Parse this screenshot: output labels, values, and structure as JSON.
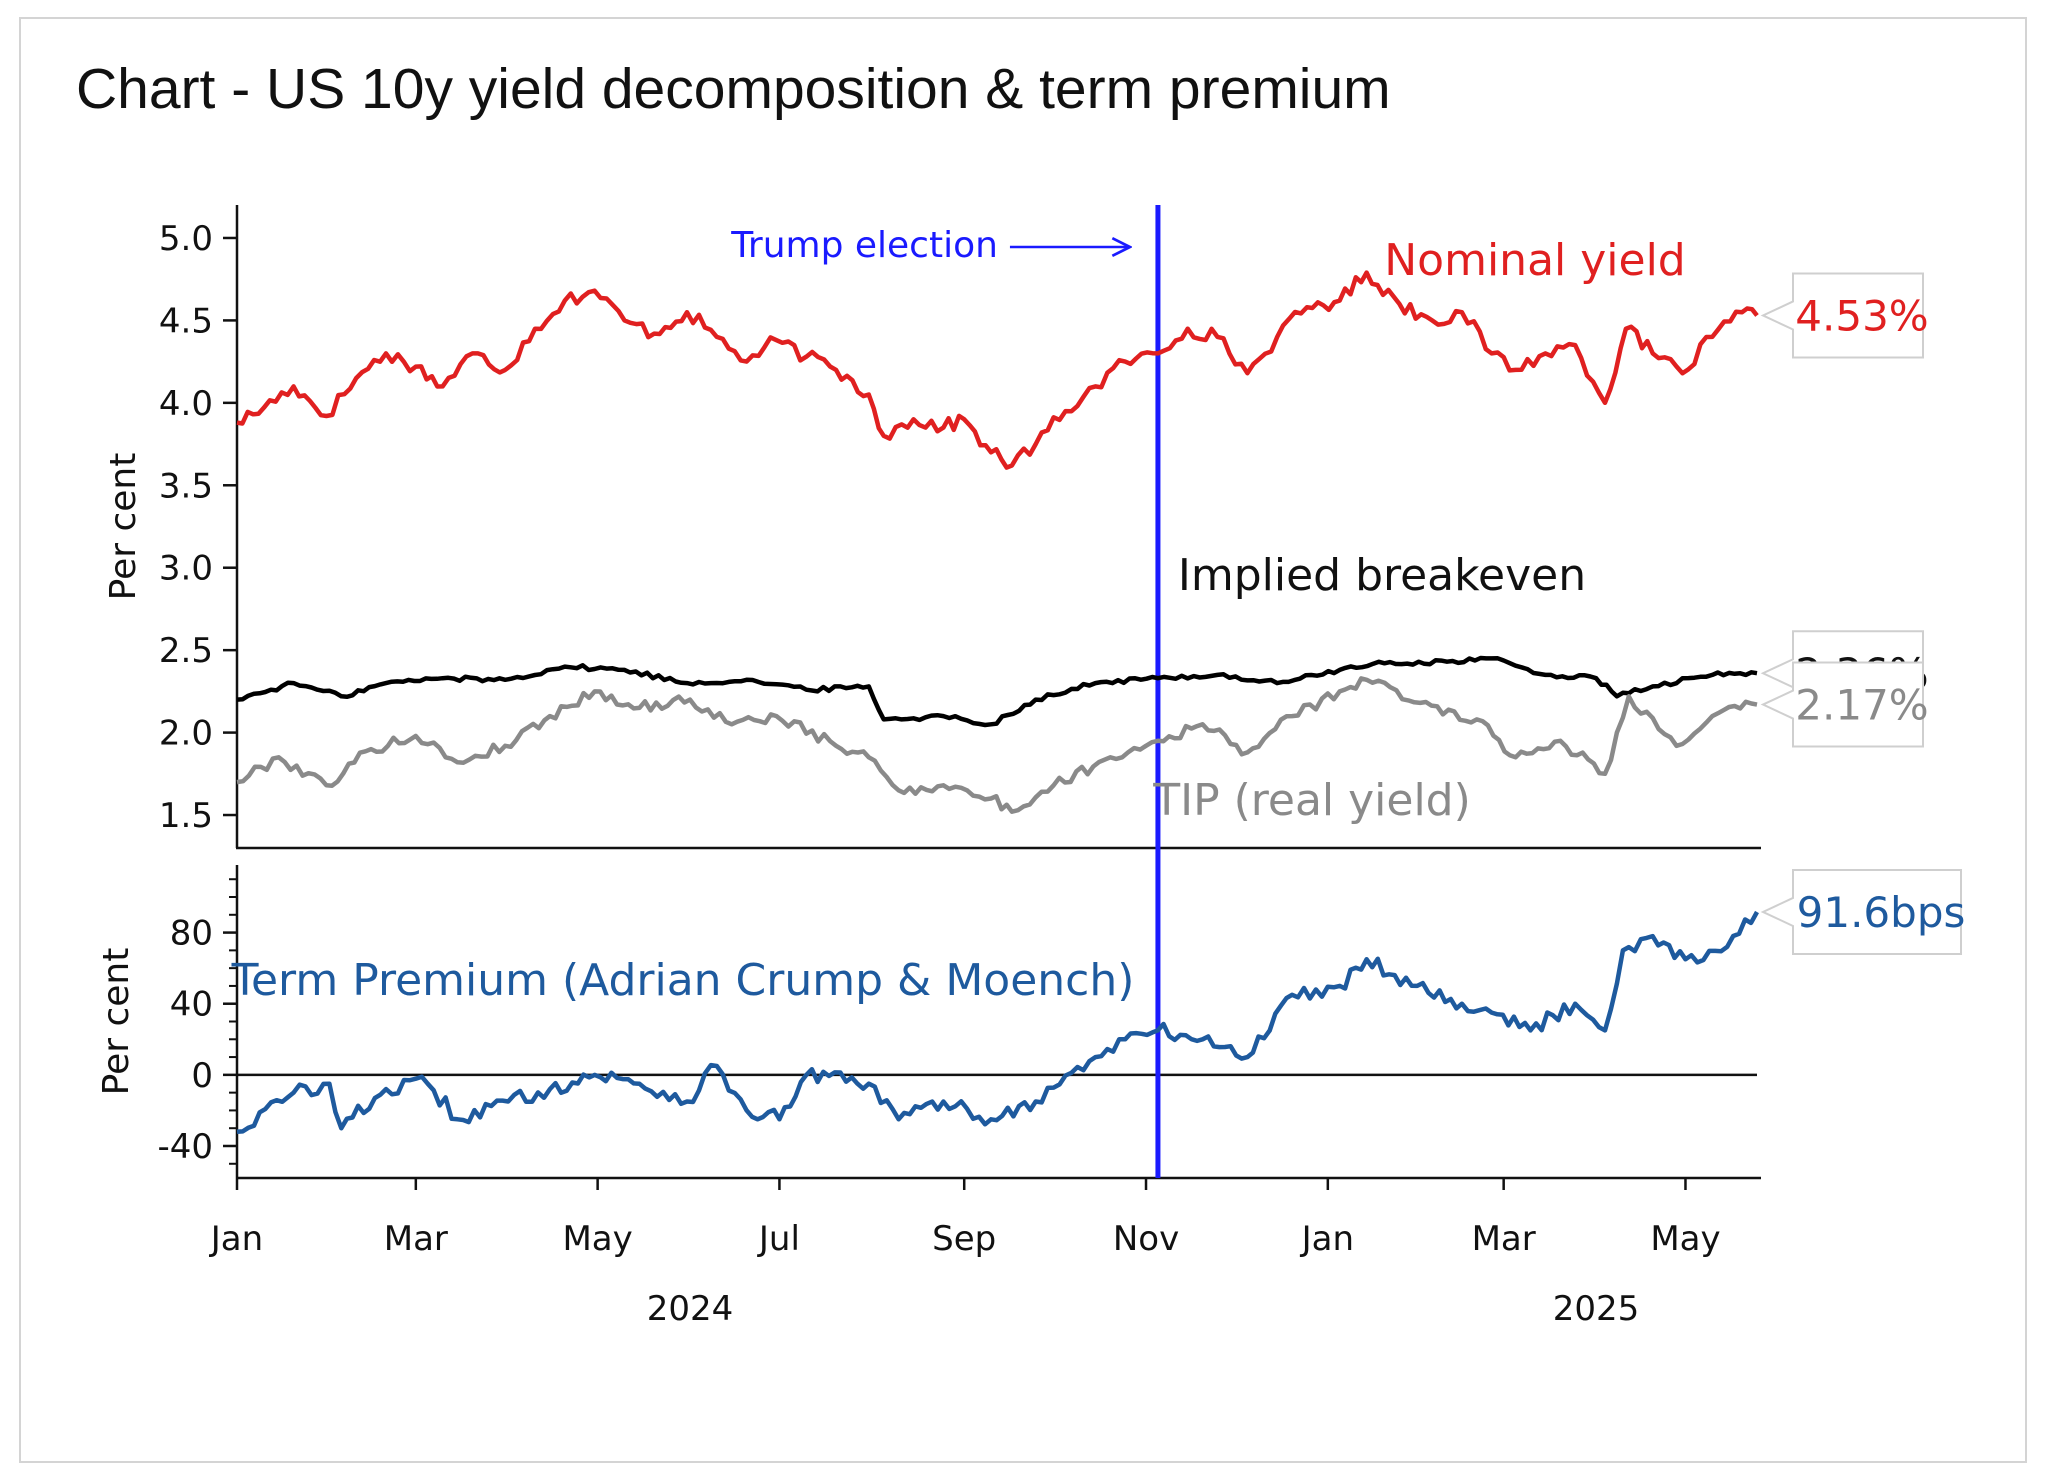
{
  "title": "Chart - US 10y yield decomposition & term premium",
  "chart_data": {
    "type": "line",
    "x_axis": {
      "months": [
        "Jan",
        "Mar",
        "May",
        "Jul",
        "Sep",
        "Nov",
        "Jan",
        "Mar",
        "May"
      ],
      "month_dates": [
        "2024-01-01",
        "2024-03-01",
        "2024-05-01",
        "2024-07-01",
        "2024-09-01",
        "2024-11-01",
        "2025-01-01",
        "2025-03-01",
        "2025-05-01"
      ],
      "years": [
        "2024",
        "2025"
      ],
      "year_dates": [
        "2024-06-01",
        "2025-04-01"
      ],
      "range": [
        "2024-01-01",
        "2025-05-25"
      ]
    },
    "annotation": {
      "label": "Trump election",
      "date": "2024-11-05",
      "color": "#1a1aff"
    },
    "panels": [
      {
        "id": "yields",
        "ylabel": "Per cent",
        "ylim": [
          1.3,
          5.2
        ],
        "yticks": [
          "5.0",
          "4.5",
          "4.0",
          "3.5",
          "3.0",
          "2.5",
          "2.0",
          "1.5"
        ],
        "series": [
          {
            "name": "Nominal yield",
            "color": "#e02020",
            "last_label": "4.53%",
            "points": [
              [
                "2024-01-01",
                3.88
              ],
              [
                "2024-01-10",
                3.97
              ],
              [
                "2024-01-20",
                4.1
              ],
              [
                "2024-01-31",
                3.92
              ],
              [
                "2024-02-10",
                4.15
              ],
              [
                "2024-02-20",
                4.3
              ],
              [
                "2024-03-01",
                4.22
              ],
              [
                "2024-03-10",
                4.1
              ],
              [
                "2024-03-20",
                4.3
              ],
              [
                "2024-03-31",
                4.2
              ],
              [
                "2024-04-10",
                4.45
              ],
              [
                "2024-04-20",
                4.62
              ],
              [
                "2024-04-30",
                4.68
              ],
              [
                "2024-05-10",
                4.5
              ],
              [
                "2024-05-20",
                4.42
              ],
              [
                "2024-05-31",
                4.55
              ],
              [
                "2024-06-10",
                4.4
              ],
              [
                "2024-06-20",
                4.25
              ],
              [
                "2024-06-30",
                4.38
              ],
              [
                "2024-07-10",
                4.28
              ],
              [
                "2024-07-20",
                4.2
              ],
              [
                "2024-07-31",
                4.05
              ],
              [
                "2024-08-05",
                3.8
              ],
              [
                "2024-08-15",
                3.9
              ],
              [
                "2024-08-25",
                3.85
              ],
              [
                "2024-09-01",
                3.9
              ],
              [
                "2024-09-10",
                3.7
              ],
              [
                "2024-09-17",
                3.62
              ],
              [
                "2024-09-25",
                3.75
              ],
              [
                "2024-10-05",
                3.95
              ],
              [
                "2024-10-15",
                4.1
              ],
              [
                "2024-10-25",
                4.25
              ],
              [
                "2024-11-05",
                4.3
              ],
              [
                "2024-11-15",
                4.45
              ],
              [
                "2024-11-25",
                4.4
              ],
              [
                "2024-12-05",
                4.18
              ],
              [
                "2024-12-15",
                4.4
              ],
              [
                "2024-12-25",
                4.58
              ],
              [
                "2025-01-05",
                4.62
              ],
              [
                "2025-01-14",
                4.79
              ],
              [
                "2025-01-25",
                4.6
              ],
              [
                "2025-02-05",
                4.5
              ],
              [
                "2025-02-15",
                4.55
              ],
              [
                "2025-02-25",
                4.3
              ],
              [
                "2025-03-05",
                4.2
              ],
              [
                "2025-03-15",
                4.3
              ],
              [
                "2025-03-25",
                4.35
              ],
              [
                "2025-04-04",
                4.0
              ],
              [
                "2025-04-11",
                4.45
              ],
              [
                "2025-04-20",
                4.3
              ],
              [
                "2025-04-30",
                4.18
              ],
              [
                "2025-05-10",
                4.4
              ],
              [
                "2025-05-20",
                4.55
              ],
              [
                "2025-05-25",
                4.53
              ]
            ]
          },
          {
            "name": "Implied breakeven",
            "color": "#000000",
            "last_label": "2.36%",
            "points": [
              [
                "2024-01-01",
                2.2
              ],
              [
                "2024-01-20",
                2.3
              ],
              [
                "2024-02-05",
                2.22
              ],
              [
                "2024-02-20",
                2.3
              ],
              [
                "2024-03-10",
                2.33
              ],
              [
                "2024-03-31",
                2.32
              ],
              [
                "2024-04-20",
                2.4
              ],
              [
                "2024-05-10",
                2.38
              ],
              [
                "2024-05-31",
                2.3
              ],
              [
                "2024-06-20",
                2.32
              ],
              [
                "2024-07-10",
                2.26
              ],
              [
                "2024-07-31",
                2.28
              ],
              [
                "2024-08-05",
                2.08
              ],
              [
                "2024-08-25",
                2.1
              ],
              [
                "2024-09-10",
                2.05
              ],
              [
                "2024-09-25",
                2.2
              ],
              [
                "2024-10-15",
                2.3
              ],
              [
                "2024-11-05",
                2.33
              ],
              [
                "2024-11-25",
                2.35
              ],
              [
                "2024-12-15",
                2.3
              ],
              [
                "2025-01-05",
                2.38
              ],
              [
                "2025-01-20",
                2.42
              ],
              [
                "2025-02-10",
                2.43
              ],
              [
                "2025-02-25",
                2.45
              ],
              [
                "2025-03-15",
                2.35
              ],
              [
                "2025-04-01",
                2.33
              ],
              [
                "2025-04-08",
                2.22
              ],
              [
                "2025-04-20",
                2.28
              ],
              [
                "2025-05-10",
                2.35
              ],
              [
                "2025-05-25",
                2.36
              ]
            ]
          },
          {
            "name": "TIP (real yield)",
            "color": "#8a8a8a",
            "last_label": "2.17%",
            "points": [
              [
                "2024-01-01",
                1.7
              ],
              [
                "2024-01-15",
                1.85
              ],
              [
                "2024-01-31",
                1.68
              ],
              [
                "2024-02-15",
                1.9
              ],
              [
                "2024-03-01",
                1.98
              ],
              [
                "2024-03-15",
                1.82
              ],
              [
                "2024-03-31",
                1.92
              ],
              [
                "2024-04-15",
                2.1
              ],
              [
                "2024-04-30",
                2.25
              ],
              [
                "2024-05-15",
                2.15
              ],
              [
                "2024-06-01",
                2.2
              ],
              [
                "2024-06-15",
                2.05
              ],
              [
                "2024-06-30",
                2.1
              ],
              [
                "2024-07-20",
                1.92
              ],
              [
                "2024-07-31",
                1.85
              ],
              [
                "2024-08-10",
                1.65
              ],
              [
                "2024-08-25",
                1.68
              ],
              [
                "2024-09-10",
                1.6
              ],
              [
                "2024-09-17",
                1.52
              ],
              [
                "2024-10-01",
                1.68
              ],
              [
                "2024-10-20",
                1.85
              ],
              [
                "2024-11-05",
                1.95
              ],
              [
                "2024-11-20",
                2.05
              ],
              [
                "2024-12-05",
                1.88
              ],
              [
                "2024-12-20",
                2.1
              ],
              [
                "2025-01-05",
                2.25
              ],
              [
                "2025-01-14",
                2.32
              ],
              [
                "2025-02-01",
                2.18
              ],
              [
                "2025-02-20",
                2.08
              ],
              [
                "2025-03-05",
                1.85
              ],
              [
                "2025-03-20",
                1.95
              ],
              [
                "2025-04-04",
                1.75
              ],
              [
                "2025-04-12",
                2.22
              ],
              [
                "2025-04-28",
                1.92
              ],
              [
                "2025-05-10",
                2.1
              ],
              [
                "2025-05-25",
                2.17
              ]
            ]
          }
        ]
      },
      {
        "id": "term-premium",
        "ylabel": "Per cent",
        "ylim": [
          -58,
          118
        ],
        "yticks": [
          "80",
          "40",
          "0",
          "-40"
        ],
        "zero_line": true,
        "series": [
          {
            "name": "Term Premium (Adrian Crump & Moench)",
            "color": "#1e5a9e",
            "last_label": "91.6bps",
            "points": [
              [
                "2024-01-01",
                -32
              ],
              [
                "2024-01-20",
                -10
              ],
              [
                "2024-02-01",
                -5
              ],
              [
                "2024-02-05",
                -30
              ],
              [
                "2024-02-20",
                -8
              ],
              [
                "2024-03-05",
                -5
              ],
              [
                "2024-03-15",
                -25
              ],
              [
                "2024-04-01",
                -15
              ],
              [
                "2024-04-15",
                -8
              ],
              [
                "2024-04-30",
                0
              ],
              [
                "2024-05-15",
                -5
              ],
              [
                "2024-05-31",
                -15
              ],
              [
                "2024-06-10",
                5
              ],
              [
                "2024-06-20",
                -20
              ],
              [
                "2024-07-01",
                -25
              ],
              [
                "2024-07-10",
                0
              ],
              [
                "2024-07-31",
                -5
              ],
              [
                "2024-08-10",
                -25
              ],
              [
                "2024-08-25",
                -15
              ],
              [
                "2024-09-10",
                -25
              ],
              [
                "2024-09-25",
                -15
              ],
              [
                "2024-10-15",
                10
              ],
              [
                "2024-10-25",
                20
              ],
              [
                "2024-11-05",
                25
              ],
              [
                "2024-11-20",
                20
              ],
              [
                "2024-12-05",
                10
              ],
              [
                "2024-12-20",
                45
              ],
              [
                "2025-01-05",
                50
              ],
              [
                "2025-01-14",
                65
              ],
              [
                "2025-01-31",
                50
              ],
              [
                "2025-02-15",
                40
              ],
              [
                "2025-02-25",
                35
              ],
              [
                "2025-03-10",
                25
              ],
              [
                "2025-03-25",
                40
              ],
              [
                "2025-04-04",
                25
              ],
              [
                "2025-04-10",
                70
              ],
              [
                "2025-04-20",
                78
              ],
              [
                "2025-05-01",
                65
              ],
              [
                "2025-05-15",
                72
              ],
              [
                "2025-05-25",
                91.6
              ]
            ]
          }
        ]
      }
    ]
  }
}
